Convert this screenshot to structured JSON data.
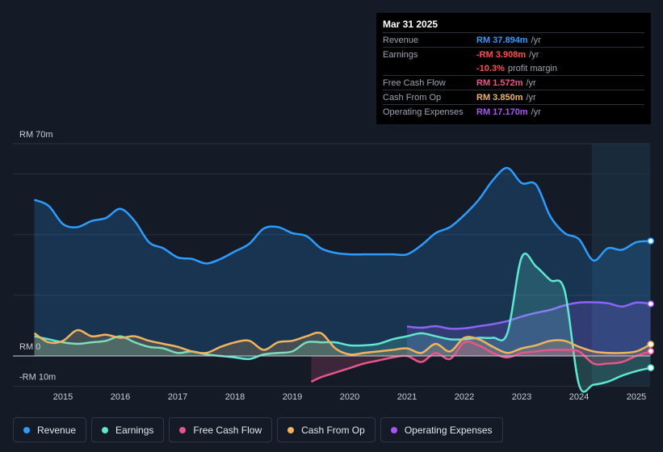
{
  "tooltip": {
    "date": "Mar 31 2025",
    "rows": {
      "revenue": {
        "label": "Revenue",
        "value": "RM 37.894m",
        "unit": "/yr",
        "color": "#2d9cff"
      },
      "earnings": {
        "label": "Earnings",
        "value": "-RM 3.908m",
        "unit": "/yr",
        "color": "#ff4d4d"
      },
      "margin": {
        "value": "-10.3%",
        "suffix": "profit margin",
        "color": "#ff4d4d"
      },
      "fcf": {
        "label": "Free Cash Flow",
        "value": "RM 1.572m",
        "unit": "/yr",
        "color": "#e8558a"
      },
      "cfo": {
        "label": "Cash From Op",
        "value": "RM 3.850m",
        "unit": "/yr",
        "color": "#f0b45e"
      },
      "opex": {
        "label": "Operating Expenses",
        "value": "RM 17.170m",
        "unit": "/yr",
        "color": "#a855f7"
      }
    }
  },
  "legend": [
    {
      "label": "Revenue",
      "color": "#2d9cff"
    },
    {
      "label": "Earnings",
      "color": "#5ee8d0"
    },
    {
      "label": "Free Cash Flow",
      "color": "#e8558a"
    },
    {
      "label": "Cash From Op",
      "color": "#f0b45e"
    },
    {
      "label": "Operating Expenses",
      "color": "#a855f7"
    }
  ],
  "chart_data": {
    "type": "area",
    "title": "",
    "unit": "RM m",
    "ylim": [
      -10,
      70
    ],
    "xlim": [
      2014.4,
      2025.3
    ],
    "y_labels": [
      {
        "value": 70,
        "label": "RM 70m"
      },
      {
        "value": 0,
        "label": "RM 0"
      },
      {
        "value": -10,
        "label": "-RM 10m"
      }
    ],
    "y_gridlines": [
      70,
      60,
      40,
      20,
      0,
      -10
    ],
    "x_ticks": [
      2015,
      2016,
      2017,
      2018,
      2019,
      2020,
      2021,
      2022,
      2023,
      2024,
      2025
    ],
    "forecast_start": 2024.25,
    "series": [
      {
        "name": "Operating Expenses",
        "color": "#a855f7",
        "fill": true,
        "x": [
          2021.0,
          2021.25,
          2021.5,
          2021.75,
          2022.0,
          2022.25,
          2022.5,
          2022.75,
          2023.0,
          2023.25,
          2023.5,
          2023.75,
          2024.0,
          2024.25,
          2024.5,
          2024.75,
          2025.0,
          2025.25
        ],
        "y": [
          9.7,
          9.3,
          9.8,
          9.0,
          9.1,
          9.8,
          10.5,
          11.5,
          13.0,
          14.2,
          15.2,
          16.7,
          17.6,
          17.7,
          17.4,
          16.3,
          17.6,
          17.17
        ]
      },
      {
        "name": "Revenue",
        "color": "#2d9cff",
        "fill": true,
        "x": [
          2014.5,
          2014.75,
          2015.0,
          2015.25,
          2015.5,
          2015.75,
          2016.0,
          2016.25,
          2016.5,
          2016.75,
          2017.0,
          2017.25,
          2017.5,
          2017.75,
          2018.0,
          2018.25,
          2018.5,
          2018.75,
          2019.0,
          2019.25,
          2019.5,
          2019.75,
          2020.0,
          2020.25,
          2020.5,
          2020.75,
          2021.0,
          2021.25,
          2021.5,
          2021.75,
          2022.0,
          2022.25,
          2022.5,
          2022.75,
          2023.0,
          2023.25,
          2023.5,
          2023.75,
          2024.0,
          2024.25,
          2024.5,
          2024.75,
          2025.0,
          2025.25
        ],
        "y": [
          51.5,
          49.5,
          43.5,
          42.5,
          44.5,
          45.5,
          48.5,
          44.5,
          37.5,
          35.5,
          32.5,
          32.0,
          30.5,
          32.0,
          34.5,
          37.0,
          42.0,
          42.5,
          40.5,
          39.5,
          35.5,
          34.0,
          33.5,
          33.5,
          33.5,
          33.5,
          33.5,
          36.5,
          40.5,
          42.5,
          46.5,
          51.5,
          58.0,
          62.0,
          57.0,
          56.5,
          46.0,
          40.5,
          38.5,
          31.5,
          35.5,
          35.0,
          37.5,
          37.894
        ]
      },
      {
        "name": "Earnings",
        "color": "#5ee8d0",
        "fill": true,
        "x": [
          2014.5,
          2014.75,
          2015.0,
          2015.25,
          2015.5,
          2015.75,
          2016.0,
          2016.25,
          2016.5,
          2016.75,
          2017.0,
          2017.25,
          2017.5,
          2017.75,
          2018.0,
          2018.25,
          2018.5,
          2018.75,
          2019.0,
          2019.25,
          2019.5,
          2019.75,
          2020.0,
          2020.25,
          2020.5,
          2020.75,
          2021.0,
          2021.25,
          2021.5,
          2021.75,
          2022.0,
          2022.25,
          2022.5,
          2022.75,
          2023.0,
          2023.25,
          2023.5,
          2023.75,
          2024.0,
          2024.25,
          2024.5,
          2024.75,
          2025.0,
          2025.25
        ],
        "y": [
          6.5,
          5.5,
          4.5,
          4.0,
          4.5,
          5.0,
          6.5,
          4.5,
          3.0,
          2.5,
          1.0,
          1.5,
          0.5,
          0.0,
          -0.5,
          -1.0,
          0.5,
          1.0,
          1.5,
          4.5,
          4.5,
          4.5,
          3.5,
          3.5,
          4.0,
          5.5,
          6.5,
          7.5,
          6.5,
          5.5,
          5.5,
          6.0,
          6.0,
          7.5,
          32.5,
          29.5,
          25.0,
          21.5,
          -9.5,
          -9.5,
          -8.5,
          -6.5,
          -5.0,
          -3.908
        ]
      },
      {
        "name": "Cash From Op",
        "color": "#f0b45e",
        "fill": true,
        "x": [
          2014.5,
          2014.75,
          2015.0,
          2015.25,
          2015.5,
          2015.75,
          2016.0,
          2016.25,
          2016.5,
          2016.75,
          2017.0,
          2017.25,
          2017.5,
          2017.75,
          2018.0,
          2018.25,
          2018.5,
          2018.75,
          2019.0,
          2019.25,
          2019.5,
          2019.75,
          2020.0,
          2020.25,
          2020.5,
          2020.75,
          2021.0,
          2021.25,
          2021.5,
          2021.75,
          2022.0,
          2022.25,
          2022.5,
          2022.75,
          2023.0,
          2023.25,
          2023.5,
          2023.75,
          2024.0,
          2024.25,
          2024.5,
          2024.75,
          2025.0,
          2025.25
        ],
        "y": [
          7.5,
          4.5,
          5.0,
          8.5,
          6.5,
          7.0,
          6.0,
          6.5,
          5.0,
          4.0,
          3.0,
          1.5,
          1.0,
          3.0,
          4.5,
          5.0,
          2.0,
          4.5,
          5.0,
          6.5,
          7.5,
          2.5,
          0.5,
          1.0,
          1.5,
          2.0,
          2.5,
          1.0,
          4.0,
          1.5,
          6.0,
          5.5,
          3.0,
          1.0,
          2.5,
          3.5,
          5.0,
          5.0,
          3.0,
          1.5,
          1.0,
          1.0,
          1.5,
          3.85
        ]
      },
      {
        "name": "Free Cash Flow",
        "color": "#e8558a",
        "fill": true,
        "x": [
          2019.33,
          2019.5,
          2019.75,
          2020.0,
          2020.25,
          2020.5,
          2020.75,
          2021.0,
          2021.25,
          2021.5,
          2021.75,
          2022.0,
          2022.25,
          2022.5,
          2022.75,
          2023.0,
          2023.25,
          2023.5,
          2023.75,
          2024.0,
          2024.25,
          2024.5,
          2024.75,
          2025.0,
          2025.25
        ],
        "y": [
          -8.5,
          -7.0,
          -5.5,
          -4.0,
          -2.5,
          -1.5,
          -0.5,
          0.0,
          -2.0,
          1.0,
          -1.0,
          4.5,
          3.5,
          1.0,
          -0.5,
          1.0,
          1.5,
          2.0,
          2.0,
          1.5,
          -2.5,
          -2.5,
          -2.0,
          0.0,
          1.572
        ]
      }
    ]
  }
}
